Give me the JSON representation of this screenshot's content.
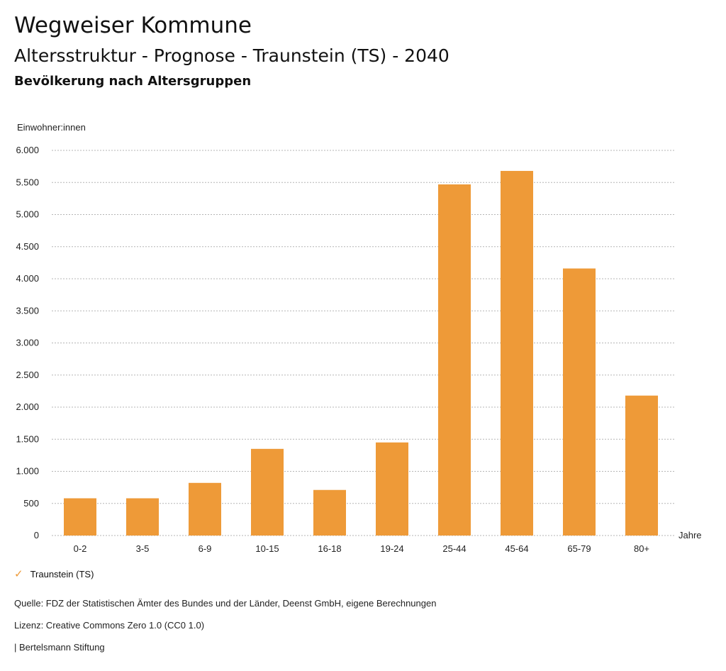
{
  "header": {
    "title": "Wegweiser Kommune",
    "subtitle": "Altersstruktur - Prognose - Traunstein (TS) - 2040",
    "subsubtitle": "Bevölkerung nach Altersgruppen"
  },
  "chart_data": {
    "type": "bar",
    "ylabel": "Einwohner:innen",
    "xlabel": "Jahre",
    "ylim": [
      0,
      6000
    ],
    "yticks": [
      0,
      500,
      1000,
      1500,
      2000,
      2500,
      3000,
      3500,
      4000,
      4500,
      5000,
      5500,
      6000
    ],
    "ytick_labels": [
      "0",
      "500",
      "1.000",
      "1.500",
      "2.000",
      "2.500",
      "3.000",
      "3.500",
      "4.000",
      "4.500",
      "5.000",
      "5.500",
      "6.000"
    ],
    "grid": true,
    "legend_position": "bottom-left",
    "categories": [
      "0-2",
      "3-5",
      "6-9",
      "10-15",
      "16-18",
      "19-24",
      "25-44",
      "45-64",
      "65-79",
      "80+"
    ],
    "series": [
      {
        "name": "Traunstein (TS)",
        "color": "#ee9a38",
        "values": [
          580,
          580,
          820,
          1350,
          710,
          1450,
          5470,
          5680,
          4160,
          2180
        ]
      }
    ]
  },
  "legend": {
    "label": "Traunstein (TS)",
    "icon": "check-icon",
    "color": "#ee9a38"
  },
  "footer": {
    "source": "Quelle: FDZ der Statistischen Ämter des Bundes und der Länder, Deenst GmbH, eigene Berechnungen",
    "license": "Lizenz: Creative Commons Zero 1.0 (CC0 1.0)",
    "publisher": "| Bertelsmann Stiftung"
  }
}
